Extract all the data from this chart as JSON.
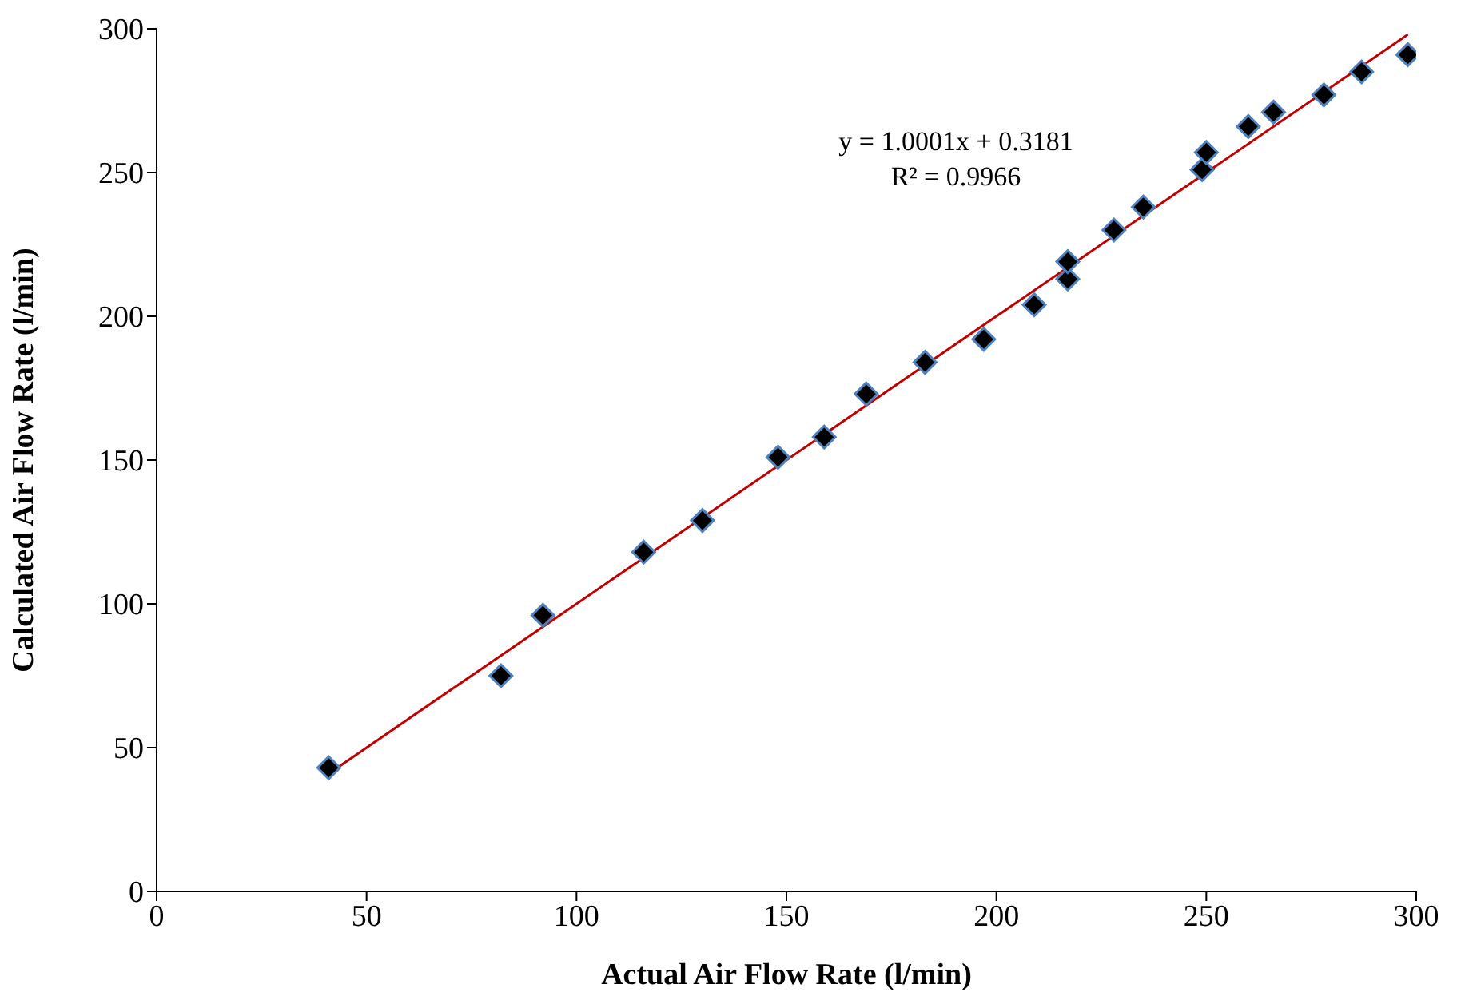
{
  "chart_data": {
    "type": "scatter",
    "xlabel": "Actual Air Flow Rate (l/min)",
    "ylabel": "Calculated Air Flow Rate (l/min)",
    "xlim": [
      0,
      300
    ],
    "xticks": [
      0,
      50,
      100,
      150,
      200,
      250,
      300
    ],
    "ylim": [
      0,
      300
    ],
    "yticks": [
      0,
      50,
      100,
      150,
      200,
      250,
      300
    ],
    "marker": "diamond",
    "annotations": [
      "y = 1.0001x + 0.3181",
      "R² = 0.9966"
    ],
    "series": [
      {
        "color": "#000000",
        "x": [
          41,
          82,
          92,
          116,
          130,
          148,
          159,
          169,
          183,
          197,
          209,
          217,
          217,
          228,
          235,
          249,
          250,
          260,
          266,
          278,
          287,
          298
        ],
        "values": [
          43,
          75,
          96,
          118,
          129,
          151,
          158,
          173,
          184,
          192,
          204,
          213,
          219,
          230,
          238,
          251,
          257,
          266,
          271,
          277,
          285,
          291
        ]
      },
      {
        "type": "line",
        "color": "#c00000",
        "x": [
          41,
          298
        ],
        "values": [
          41,
          298
        ],
        "line_style": "solid",
        "marker": "none"
      }
    ]
  }
}
